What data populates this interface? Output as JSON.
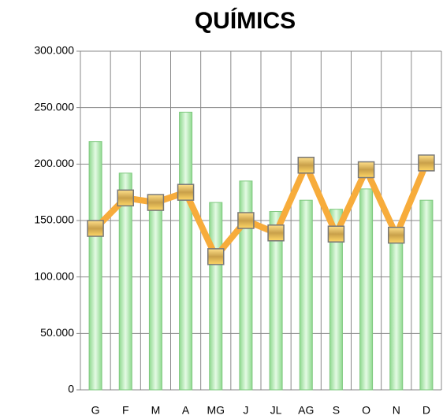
{
  "chart_data": {
    "type": "bar_line",
    "title": "QUÍMICS",
    "categories": [
      "G",
      "F",
      "M",
      "A",
      "MG",
      "J",
      "JL",
      "AG",
      "S",
      "O",
      "N",
      "D"
    ],
    "series": [
      {
        "type": "bar",
        "color": "#b6ecb6",
        "values": [
          220000,
          192000,
          165000,
          246000,
          166000,
          185000,
          158000,
          168000,
          160000,
          178000,
          140000,
          168000
        ]
      },
      {
        "type": "line",
        "color": "#f7ac3b",
        "values": [
          143000,
          170000,
          166000,
          175000,
          118000,
          150000,
          139000,
          199000,
          138000,
          195000,
          137000,
          201000
        ]
      }
    ],
    "ylim": [
      0,
      300000
    ],
    "yticks": [
      0,
      {
        "value": 50000,
        "label": "50.000"
      },
      {
        "value": 100000,
        "label": "100.000"
      },
      {
        "value": 150000,
        "label": "150.000"
      },
      {
        "value": 200000,
        "label": "200.000"
      },
      {
        "value": 250000,
        "label": "250.000"
      },
      {
        "value": 300000,
        "label": "300.000"
      }
    ],
    "grid": true
  }
}
